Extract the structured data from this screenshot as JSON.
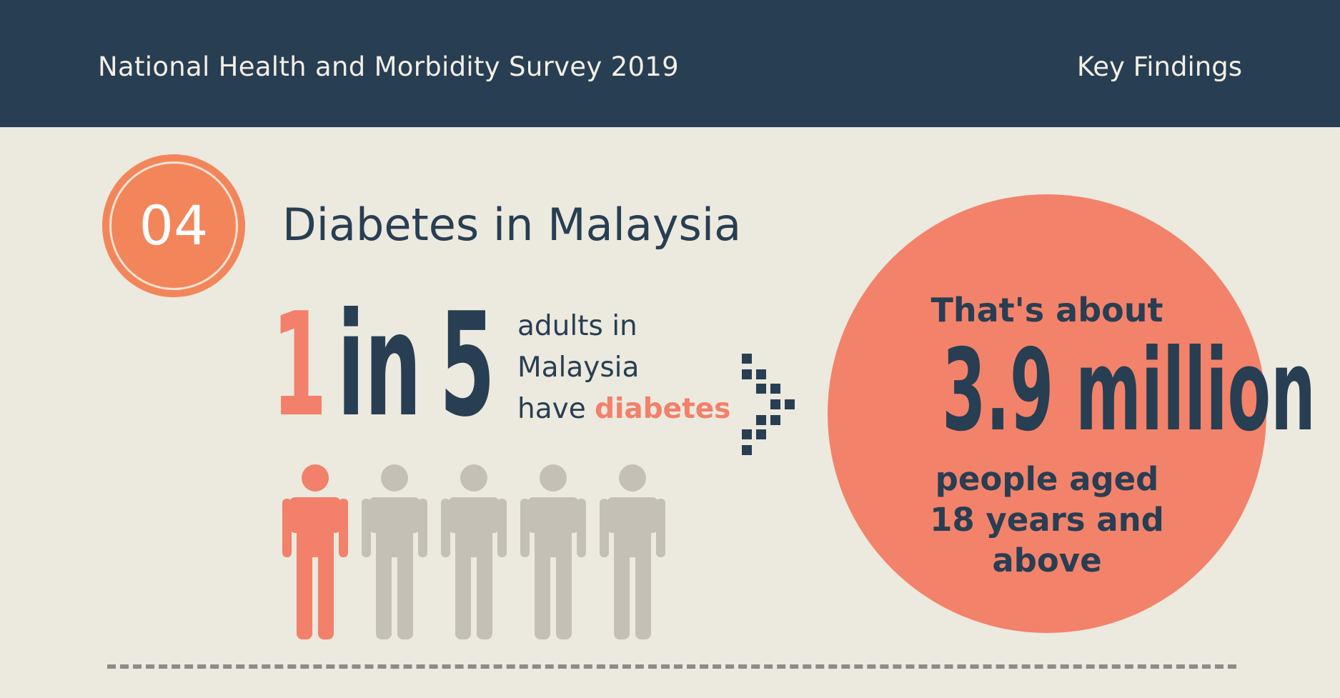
{
  "header": {
    "title": "National Health and Morbidity Survey 2019",
    "right_label": "Key Findings"
  },
  "section": {
    "number": "04",
    "title": "Diabetes in Malaysia"
  },
  "ratio": {
    "numerator": "1",
    "word": "in",
    "denominator": "5",
    "line1": "adults in",
    "line2": "Malaysia",
    "line3_prefix": "have ",
    "line3_highlight": "diabetes"
  },
  "figures": {
    "total": 5,
    "highlighted": 1,
    "highlight_color": "#f2806a",
    "default_color": "#c4c0b5"
  },
  "callout": {
    "lead": "That's about",
    "value": "3.9 million",
    "line1": "people aged",
    "line2": "18 years and",
    "line3": "above"
  },
  "colors": {
    "navy": "#283e52",
    "orange": "#f2806a",
    "background": "#ece9df"
  },
  "icons": {
    "arrow": "pixel-arrow-right-icon",
    "person": "person-icon"
  }
}
